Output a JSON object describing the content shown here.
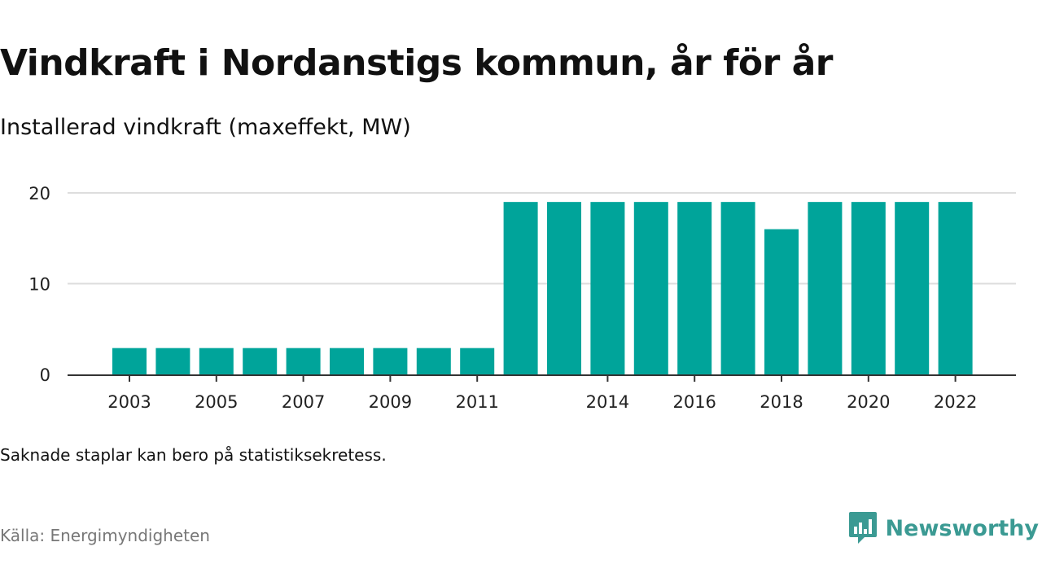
{
  "title": "Vindkraft i Nordanstigs kommun, år för år",
  "subtitle": "Installerad vindkraft (maxeffekt, MW)",
  "note": "Saknade staplar kan bero på statistiksekretess.",
  "source": "Källa: Energimyndigheten",
  "brand": {
    "name": "Newsworthy",
    "color": "#3b9a93"
  },
  "chart_data": {
    "type": "bar",
    "categories": [
      "2003",
      "2004",
      "2005",
      "2006",
      "2007",
      "2008",
      "2009",
      "2010",
      "2011",
      "2012",
      "2013",
      "2014",
      "2015",
      "2016",
      "2017",
      "2018",
      "2019",
      "2020",
      "2021",
      "2022"
    ],
    "values": [
      2.9,
      2.9,
      2.9,
      2.9,
      2.9,
      2.9,
      2.9,
      2.9,
      2.9,
      19,
      19,
      19,
      19,
      19,
      19,
      16,
      19,
      19,
      19,
      19
    ],
    "x_tick_labels": [
      "2003",
      "2005",
      "2007",
      "2009",
      "2011",
      "2014",
      "2016",
      "2018",
      "2020",
      "2022"
    ],
    "y_ticks": [
      0,
      10,
      20
    ],
    "ylim": [
      0,
      20
    ],
    "grid": true,
    "bar_color": "#00a49a",
    "grid_color": "#dddddd"
  }
}
